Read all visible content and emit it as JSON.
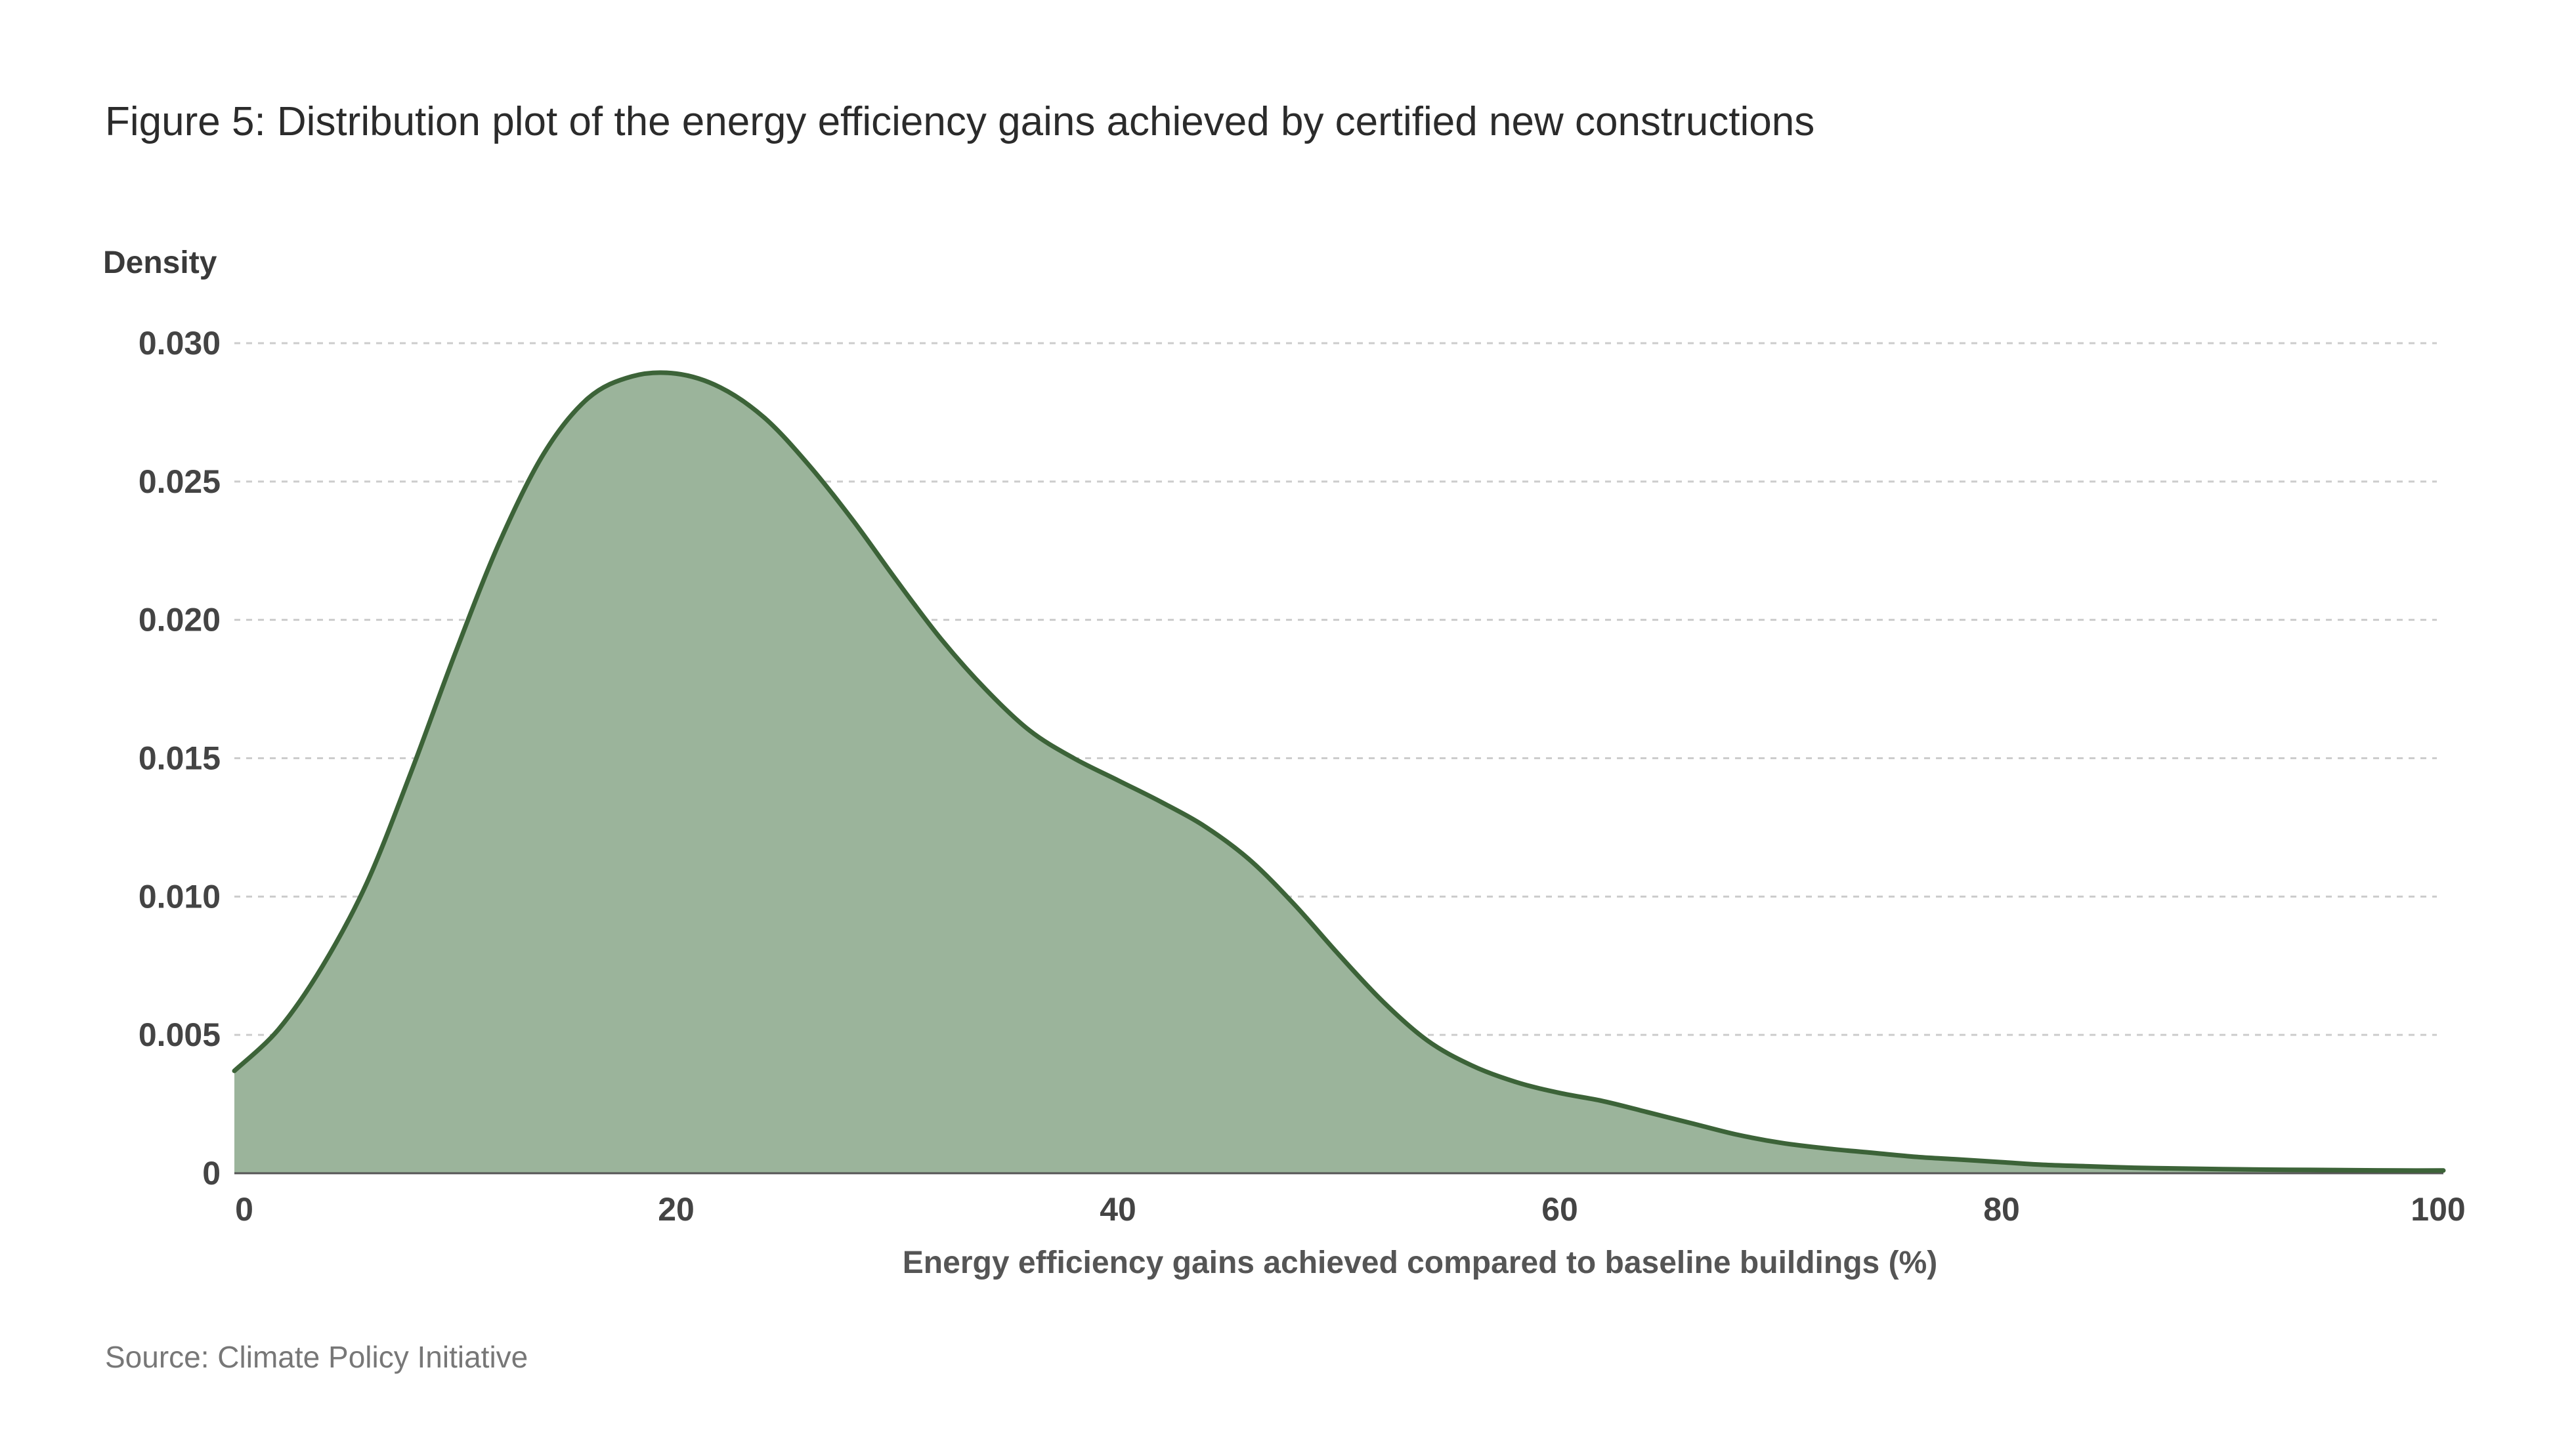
{
  "figure": {
    "title": "Figure 5: Distribution plot of the energy efficiency gains achieved by certified new constructions",
    "source": "Source: Climate Policy Initiative"
  },
  "chart_data": {
    "type": "area",
    "title": "Figure 5: Distribution plot of the energy efficiency gains achieved by certified new constructions",
    "xlabel": "Energy efficiency gains achieved compared to baseline buildings (%)",
    "ylabel": "Density",
    "xlim": [
      0,
      100
    ],
    "ylim": [
      0,
      0.03
    ],
    "x_ticks": [
      "0",
      "20",
      "40",
      "60",
      "80",
      "100"
    ],
    "x_tick_values": [
      0,
      20,
      40,
      60,
      80,
      100
    ],
    "y_ticks": [
      "0",
      "0.005",
      "0.010",
      "0.015",
      "0.020",
      "0.025",
      "0.030"
    ],
    "y_tick_values": [
      0,
      0.005,
      0.01,
      0.015,
      0.02,
      0.025,
      0.03
    ],
    "grid": {
      "horizontal": true,
      "vertical": false,
      "style": "dotted"
    },
    "colors": {
      "fill": "#9bb49b",
      "line": "#3c6338",
      "grid": "#cccccc"
    },
    "series": [
      {
        "x": [
          0,
          2,
          4,
          6,
          8,
          10,
          12,
          14,
          16,
          18,
          20,
          22,
          24,
          26,
          28,
          30,
          32,
          34,
          36,
          38,
          40,
          42,
          44,
          46,
          48,
          50,
          52,
          54,
          56,
          58,
          60,
          62,
          64,
          66,
          68,
          70,
          72,
          74,
          76,
          78,
          80,
          82,
          84,
          86,
          88,
          90,
          92,
          94,
          96,
          98,
          100
        ],
        "values": [
          0.0037,
          0.0052,
          0.0075,
          0.0105,
          0.0145,
          0.0188,
          0.0228,
          0.026,
          0.028,
          0.0288,
          0.0289,
          0.0284,
          0.0273,
          0.0256,
          0.0236,
          0.0214,
          0.0193,
          0.0175,
          0.016,
          0.015,
          0.0142,
          0.0134,
          0.0125,
          0.0113,
          0.0097,
          0.0079,
          0.0062,
          0.0048,
          0.0039,
          0.0033,
          0.0029,
          0.0026,
          0.0022,
          0.0018,
          0.0014,
          0.0011,
          0.0009,
          0.00075,
          0.0006,
          0.0005,
          0.0004,
          0.0003,
          0.00025,
          0.0002,
          0.00017,
          0.00015,
          0.00013,
          0.00012,
          0.00011,
          0.0001,
          0.0001
        ]
      }
    ]
  }
}
